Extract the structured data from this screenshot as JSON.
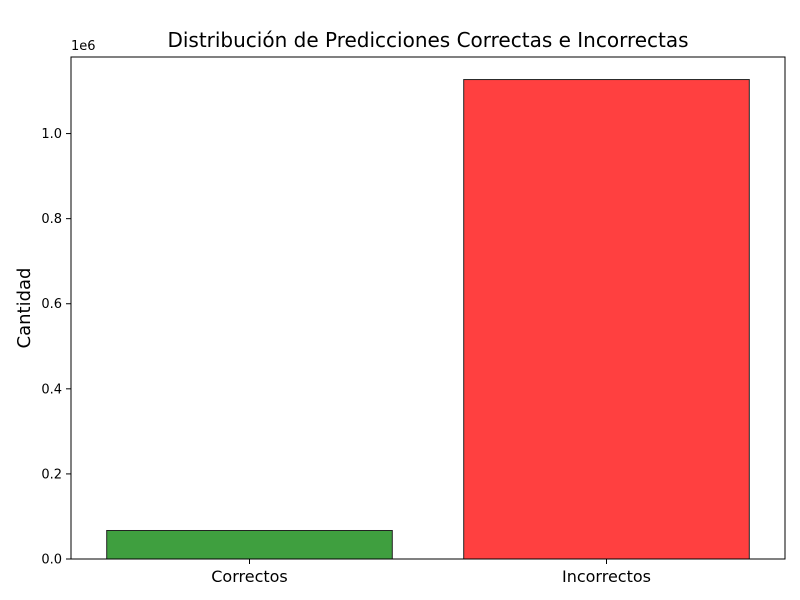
{
  "chart_data": {
    "type": "bar",
    "title": "Distribución de Predicciones Correctas e Incorrectas",
    "xlabel": "",
    "ylabel": "Cantidad",
    "categories": [
      "Correctos",
      "Incorrectos"
    ],
    "values": [
      67000,
      1127000
    ],
    "colors": [
      "#3f9f3f",
      "#ff4040"
    ],
    "ylim": [
      0,
      1180000
    ],
    "yticks": [
      0,
      200000,
      400000,
      600000,
      800000,
      1000000
    ],
    "ytick_labels": [
      "0.0",
      "0.2",
      "0.4",
      "0.6",
      "0.8",
      "1.0"
    ],
    "y_offset_label": "1e6",
    "grid": false,
    "legend": "none"
  }
}
